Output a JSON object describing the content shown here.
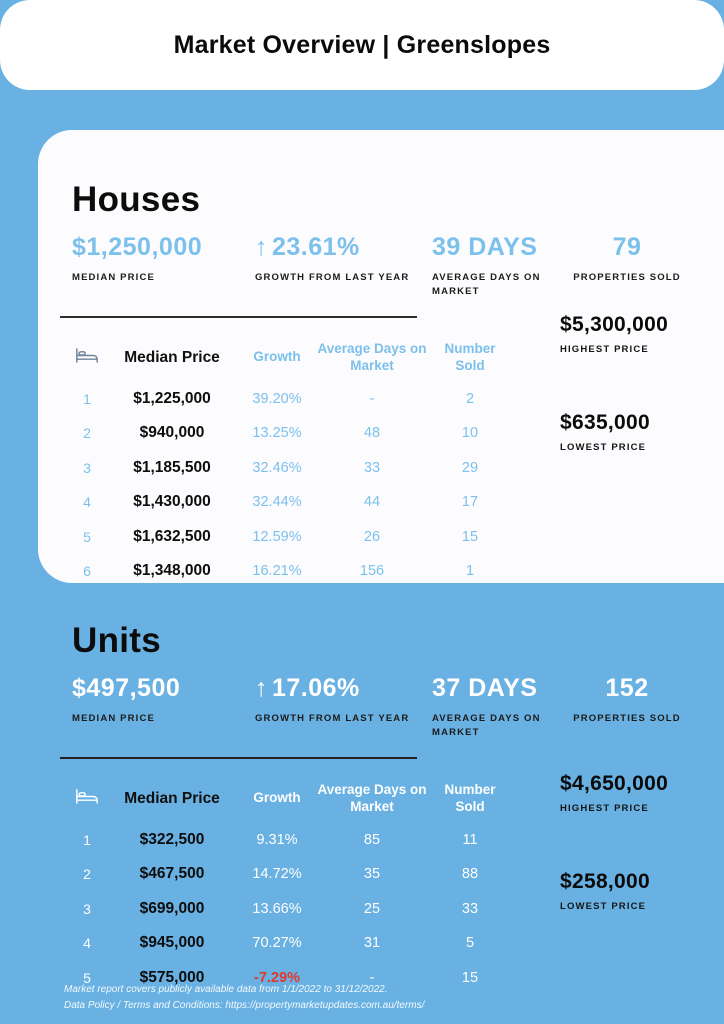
{
  "theme": {
    "background_blue": "#68B1E2",
    "accent_blue": "#7CC0EC",
    "card_white": "#FCFCFE",
    "text_black": "#0E0E0E",
    "negative_red": "#E2372C",
    "bed_icon_gray": "#70849B"
  },
  "header": {
    "title": "Market Overview | Greenslopes"
  },
  "houses": {
    "section_title": "Houses",
    "stats": [
      {
        "value": "$1,250,000",
        "label": "MEDIAN PRICE"
      },
      {
        "arrow": "↑",
        "value": "23.61%",
        "label": "GROWTH FROM LAST YEAR"
      },
      {
        "value": "39 DAYS",
        "label": "AVERAGE DAYS ON MARKET"
      },
      {
        "value": "79",
        "label": "PROPERTIES SOLD"
      }
    ],
    "table": {
      "headers": [
        "Median Price",
        "Growth",
        "Average Days on Market",
        "Number Sold"
      ],
      "rows": [
        {
          "beds": "1",
          "median_price": "$1,225,000",
          "growth": "39.20%",
          "avg_days": "-",
          "sold": "2"
        },
        {
          "beds": "2",
          "median_price": "$940,000",
          "growth": "13.25%",
          "avg_days": "48",
          "sold": "10"
        },
        {
          "beds": "3",
          "median_price": "$1,185,500",
          "growth": "32.46%",
          "avg_days": "33",
          "sold": "29"
        },
        {
          "beds": "4",
          "median_price": "$1,430,000",
          "growth": "32.44%",
          "avg_days": "44",
          "sold": "17"
        },
        {
          "beds": "5",
          "median_price": "$1,632,500",
          "growth": "12.59%",
          "avg_days": "26",
          "sold": "15"
        },
        {
          "beds": "6",
          "median_price": "$1,348,000",
          "growth": "16.21%",
          "avg_days": "156",
          "sold": "1"
        }
      ]
    },
    "highest_price": {
      "value": "$5,300,000",
      "label": "HIGHEST PRICE"
    },
    "lowest_price": {
      "value": "$635,000",
      "label": "LOWEST PRICE"
    }
  },
  "units": {
    "section_title": "Units",
    "stats": [
      {
        "value": "$497,500",
        "label": "MEDIAN PRICE"
      },
      {
        "arrow": "↑",
        "value": "17.06%",
        "label": "GROWTH FROM LAST YEAR"
      },
      {
        "value": "37 DAYS",
        "label": "AVERAGE DAYS ON MARKET"
      },
      {
        "value": "152",
        "label": "PROPERTIES SOLD"
      }
    ],
    "table": {
      "headers": [
        "Median Price",
        "Growth",
        "Average Days on Market",
        "Number Sold"
      ],
      "rows": [
        {
          "beds": "1",
          "median_price": "$322,500",
          "growth": "9.31%",
          "avg_days": "85",
          "sold": "11"
        },
        {
          "beds": "2",
          "median_price": "$467,500",
          "growth": "14.72%",
          "avg_days": "35",
          "sold": "88"
        },
        {
          "beds": "3",
          "median_price": "$699,000",
          "growth": "13.66%",
          "avg_days": "25",
          "sold": "33"
        },
        {
          "beds": "4",
          "median_price": "$945,000",
          "growth": "70.27%",
          "avg_days": "31",
          "sold": "5"
        },
        {
          "beds": "5",
          "median_price": "$575,000",
          "growth": "-7.29%",
          "avg_days": "-",
          "sold": "15",
          "negative": true
        }
      ]
    },
    "highest_price": {
      "value": "$4,650,000",
      "label": "HIGHEST PRICE"
    },
    "lowest_price": {
      "value": "$258,000",
      "label": "LOWEST PRICE"
    }
  },
  "footer": {
    "line1": "Market report covers publicly available data from 1/1/2022 to 31/12/2022.",
    "line2": "Data Policy / Terms and Conditions: https://propertymarketupdates.com.au/terms/"
  }
}
